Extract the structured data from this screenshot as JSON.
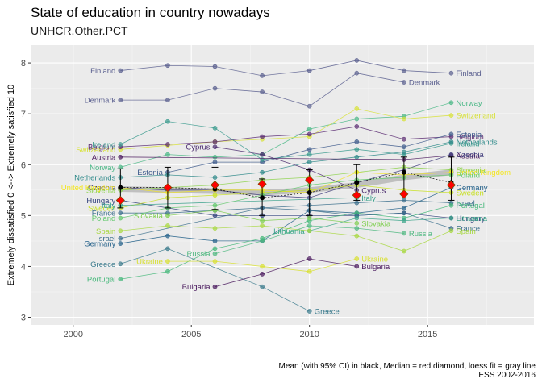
{
  "chart_data": {
    "type": "line",
    "title": "State of education in country nowadays",
    "subtitle": "UNHCR.Other.PCT",
    "xlabel": "",
    "ylabel": "Extremely dissatisfied 0 <--> Extremely satisfied 10",
    "xlim": [
      1998.2,
      2019.5
    ],
    "ylim": [
      2.85,
      8.35
    ],
    "xticks": [
      2000,
      2005,
      2010,
      2015
    ],
    "yticks": [
      3,
      4,
      5,
      6,
      7,
      8
    ],
    "grid": true,
    "caption_line1": "Mean (with 95% CI) in black, Median = red diamond, loess fit = gray line",
    "caption_line2": "ESS 2002-2016",
    "series": [
      {
        "name": "Finland",
        "color": "#5a5f8f",
        "points": [
          [
            2002,
            7.85
          ],
          [
            2004,
            7.95
          ],
          [
            2006,
            7.93
          ],
          [
            2008,
            7.75
          ],
          [
            2010,
            7.85
          ],
          [
            2012,
            8.05
          ],
          [
            2014,
            7.85
          ],
          [
            2016,
            7.8
          ]
        ],
        "label_left": "Finland",
        "label_right": "Finland"
      },
      {
        "name": "Denmark",
        "color": "#5a5f8f",
        "points": [
          [
            2002,
            7.27
          ],
          [
            2004,
            7.27
          ],
          [
            2006,
            7.5
          ],
          [
            2008,
            7.43
          ],
          [
            2010,
            7.15
          ],
          [
            2012,
            7.8
          ],
          [
            2014,
            7.62
          ]
        ],
        "label_left": "Denmark",
        "label_right": "Denmark"
      },
      {
        "name": "Norway",
        "color": "#4ab886",
        "points": [
          [
            2002,
            5.95
          ],
          [
            2004,
            6.2
          ],
          [
            2006,
            6.15
          ],
          [
            2008,
            6.2
          ],
          [
            2010,
            6.7
          ],
          [
            2012,
            6.9
          ],
          [
            2014,
            6.95
          ],
          [
            2016,
            7.22
          ]
        ],
        "label_left": "Norway",
        "label_right": "Norway"
      },
      {
        "name": "Switzerland",
        "color": "#d8e23a",
        "points": [
          [
            2002,
            6.3
          ],
          [
            2004,
            6.38
          ],
          [
            2006,
            6.45
          ],
          [
            2008,
            6.5
          ],
          [
            2010,
            6.55
          ],
          [
            2012,
            7.1
          ],
          [
            2014,
            6.9
          ],
          [
            2016,
            6.97
          ]
        ],
        "label_left": "Switzerland",
        "label_right": "Switzerland"
      },
      {
        "name": "Belgium",
        "color": "#5c2d73",
        "points": [
          [
            2002,
            6.35
          ],
          [
            2004,
            6.4
          ],
          [
            2006,
            6.45
          ],
          [
            2008,
            6.55
          ],
          [
            2010,
            6.6
          ],
          [
            2012,
            6.75
          ],
          [
            2014,
            6.5
          ],
          [
            2016,
            6.55
          ]
        ],
        "label_left": "Belgium",
        "label_right": "Belgium"
      },
      {
        "name": "Estonia",
        "color": "#3e5b8c",
        "points": [
          [
            2004,
            5.85
          ],
          [
            2006,
            6.05
          ],
          [
            2008,
            6.05
          ],
          [
            2010,
            6.3
          ],
          [
            2012,
            6.45
          ],
          [
            2014,
            6.35
          ],
          [
            2016,
            6.6
          ]
        ],
        "label_left": "Estonia",
        "label_right": "Estonia"
      },
      {
        "name": "Ireland",
        "color": "#3b9b8e",
        "points": [
          [
            2002,
            6.4
          ],
          [
            2004,
            6.85
          ],
          [
            2006,
            6.72
          ],
          [
            2008,
            6.1
          ],
          [
            2010,
            6.2
          ],
          [
            2012,
            6.3
          ],
          [
            2014,
            6.2
          ],
          [
            2016,
            6.42
          ]
        ],
        "label_left": "Ireland",
        "label_right": "Ireland"
      },
      {
        "name": "Netherlands",
        "color": "#2f8a8a",
        "points": [
          [
            2002,
            5.75
          ],
          [
            2004,
            5.8
          ],
          [
            2006,
            5.75
          ],
          [
            2008,
            5.85
          ],
          [
            2010,
            6.05
          ],
          [
            2012,
            6.15
          ],
          [
            2014,
            6.25
          ],
          [
            2016,
            6.45
          ]
        ],
        "label_left": "Netherlands",
        "label_right": "Netherlands"
      },
      {
        "name": "Austria",
        "color": "#4b1a5e",
        "points": [
          [
            2002,
            6.15
          ],
          [
            2014,
            6.1
          ],
          [
            2016,
            6.18
          ]
        ],
        "label_left": "Austria",
        "label_right": "Austria"
      },
      {
        "name": "Czechia",
        "color": "#3d3a7a",
        "points": [
          [
            2002,
            5.55
          ],
          [
            2004,
            5.5
          ],
          [
            2006,
            5.5
          ],
          [
            2008,
            5.4
          ],
          [
            2010,
            5.35
          ],
          [
            2012,
            5.65
          ],
          [
            2014,
            5.9
          ],
          [
            2016,
            6.2
          ]
        ],
        "label_left": "Czechia",
        "label_right": "Czechia"
      },
      {
        "name": "Slovenia",
        "color": "#8cd24a",
        "points": [
          [
            2002,
            5.5
          ],
          [
            2004,
            5.55
          ],
          [
            2006,
            5.6
          ],
          [
            2008,
            5.7
          ],
          [
            2010,
            5.75
          ],
          [
            2012,
            5.85
          ],
          [
            2014,
            5.95
          ],
          [
            2016,
            5.9
          ]
        ],
        "label_left": "Slovenia",
        "label_right": "Slovenia"
      },
      {
        "name": "United Kingdom",
        "color": "#f4e61e",
        "points": [
          [
            2002,
            5.55
          ],
          [
            2004,
            5.45
          ],
          [
            2006,
            5.5
          ],
          [
            2008,
            5.5
          ],
          [
            2010,
            5.45
          ],
          [
            2012,
            5.85
          ],
          [
            2014,
            5.8
          ],
          [
            2016,
            5.85
          ]
        ],
        "label_left": "United Kingdom",
        "label_right": "United Kingdom"
      },
      {
        "name": "Cyprus",
        "color": "#4a2a6e",
        "points": [
          [
            2006,
            6.35
          ],
          [
            2008,
            6.2
          ],
          [
            2010,
            5.9
          ],
          [
            2012,
            5.5
          ]
        ],
        "label_left": "Cyprus",
        "label_right": "Cyprus"
      },
      {
        "name": "Germany",
        "color": "#24618a",
        "points": [
          [
            2002,
            4.45
          ],
          [
            2004,
            4.6
          ],
          [
            2006,
            4.5
          ],
          [
            2008,
            4.5
          ],
          [
            2010,
            5.1
          ],
          [
            2012,
            5.05
          ],
          [
            2014,
            5.15
          ],
          [
            2016,
            5.55
          ]
        ],
        "label_left": "Germany",
        "label_right": "Germany"
      },
      {
        "name": "Hungary",
        "color": "#2f3f7a",
        "points": [
          [
            2002,
            5.3
          ],
          [
            2004,
            5.15
          ],
          [
            2006,
            5.0
          ],
          [
            2008,
            5.0
          ],
          [
            2010,
            5.0
          ],
          [
            2012,
            5.0
          ],
          [
            2014,
            5.05
          ],
          [
            2016,
            4.95
          ]
        ],
        "label_left": "Hungary",
        "label_right": "Hungary"
      },
      {
        "name": "Israel",
        "color": "#3a6e8c",
        "points": [
          [
            2002,
            4.55
          ],
          [
            2008,
            5.15
          ],
          [
            2010,
            5.2
          ],
          [
            2012,
            5.25
          ],
          [
            2014,
            5.3
          ],
          [
            2016,
            5.25
          ]
        ],
        "label_left": "Israel",
        "label_right": "Israel"
      },
      {
        "name": "Sweden",
        "color": "#c8e020",
        "points": [
          [
            2002,
            5.15
          ],
          [
            2004,
            5.35
          ],
          [
            2006,
            5.4
          ],
          [
            2008,
            5.45
          ],
          [
            2010,
            5.5
          ],
          [
            2012,
            5.6
          ],
          [
            2014,
            5.5
          ],
          [
            2016,
            5.45
          ]
        ],
        "label_left": "Sweden",
        "label_right": "Sweden"
      },
      {
        "name": "Portugal",
        "color": "#45b87a",
        "points": [
          [
            2002,
            3.75
          ],
          [
            2004,
            3.9
          ],
          [
            2006,
            4.35
          ],
          [
            2008,
            4.55
          ],
          [
            2010,
            4.9
          ],
          [
            2012,
            5.05
          ],
          [
            2014,
            4.95
          ],
          [
            2016,
            5.2
          ]
        ],
        "label_left": "Portugal",
        "label_right": "Portugal"
      },
      {
        "name": "France",
        "color": "#3a6e8c",
        "points": [
          [
            2002,
            5.05
          ],
          [
            2004,
            5.05
          ],
          [
            2006,
            5.1
          ],
          [
            2008,
            5.15
          ],
          [
            2010,
            5.1
          ],
          [
            2012,
            5.0
          ],
          [
            2014,
            5.05
          ],
          [
            2016,
            4.75
          ]
        ],
        "label_left": "France",
        "label_right": "France"
      },
      {
        "name": "Lithuania",
        "color": "#3aa58a",
        "points": [
          [
            2010,
            4.7
          ],
          [
            2012,
            4.95
          ],
          [
            2014,
            4.9
          ],
          [
            2016,
            4.95
          ]
        ],
        "label_left": "Lithuania",
        "label_right": "Lithuania"
      },
      {
        "name": "Poland",
        "color": "#5fc86a",
        "points": [
          [
            2002,
            4.95
          ],
          [
            2004,
            5.15
          ],
          [
            2006,
            5.2
          ],
          [
            2008,
            5.4
          ],
          [
            2010,
            5.6
          ],
          [
            2012,
            5.7
          ],
          [
            2014,
            5.75
          ],
          [
            2016,
            5.8
          ]
        ],
        "label_left": "Poland",
        "label_right": "Poland"
      },
      {
        "name": "Spain",
        "color": "#a8d840",
        "points": [
          [
            2002,
            4.7
          ],
          [
            2004,
            4.8
          ],
          [
            2006,
            4.75
          ],
          [
            2008,
            4.8
          ],
          [
            2010,
            4.7
          ],
          [
            2012,
            4.6
          ],
          [
            2014,
            4.3
          ],
          [
            2016,
            4.7
          ]
        ],
        "label_left": "Spain",
        "label_right": "Spain"
      },
      {
        "name": "Italy",
        "color": "#36a08a",
        "points": [
          [
            2002,
            5.2
          ],
          [
            2012,
            5.35
          ]
        ],
        "label_left": "Italy",
        "label_right": "Italy"
      },
      {
        "name": "Slovakia",
        "color": "#7fcf50",
        "points": [
          [
            2004,
            5.0
          ],
          [
            2006,
            5.1
          ],
          [
            2008,
            4.9
          ],
          [
            2010,
            4.95
          ],
          [
            2012,
            4.85
          ]
        ],
        "label_left": "Slovakia",
        "label_right": "Slovakia"
      },
      {
        "name": "Russia",
        "color": "#4fb880",
        "points": [
          [
            2006,
            4.25
          ],
          [
            2008,
            4.5
          ],
          [
            2010,
            4.8
          ],
          [
            2012,
            4.75
          ],
          [
            2014,
            4.65
          ]
        ],
        "label_left": "Russia",
        "label_right": "Russia"
      },
      {
        "name": "Greece",
        "color": "#3a7a8c",
        "points": [
          [
            2002,
            4.05
          ],
          [
            2004,
            4.35
          ],
          [
            2008,
            3.6
          ],
          [
            2010,
            3.12
          ]
        ],
        "label_left": "Greece",
        "label_right": "Greece"
      },
      {
        "name": "Ukraine",
        "color": "#d8e030",
        "points": [
          [
            2004,
            4.1
          ],
          [
            2006,
            4.1
          ],
          [
            2008,
            4.0
          ],
          [
            2010,
            3.9
          ],
          [
            2012,
            4.15
          ]
        ],
        "label_left": "Ukraine",
        "label_right": "Ukraine"
      },
      {
        "name": "Bulgaria",
        "color": "#4a1a5e",
        "points": [
          [
            2006,
            3.6
          ],
          [
            2008,
            3.85
          ],
          [
            2010,
            4.15
          ],
          [
            2012,
            4.0
          ]
        ],
        "label_left": "Bulgaria",
        "label_right": "Bulgaria"
      }
    ],
    "mean": {
      "name": "Mean (with 95% CI)",
      "color": "#000000",
      "points": [
        {
          "x": 2002,
          "y": 5.55,
          "lo": 5.15,
          "hi": 5.92
        },
        {
          "x": 2004,
          "y": 5.55,
          "lo": 5.15,
          "hi": 5.95
        },
        {
          "x": 2006,
          "y": 5.52,
          "lo": 5.12,
          "hi": 5.95
        },
        {
          "x": 2008,
          "y": 5.35,
          "lo": 5.0,
          "hi": 5.72
        },
        {
          "x": 2010,
          "y": 5.45,
          "lo": 5.0,
          "hi": 5.9
        },
        {
          "x": 2012,
          "y": 5.65,
          "lo": 5.3,
          "hi": 6.0
        },
        {
          "x": 2014,
          "y": 5.85,
          "lo": 5.45,
          "hi": 6.15
        },
        {
          "x": 2016,
          "y": 5.65,
          "lo": 5.3,
          "hi": 6.15
        }
      ]
    },
    "median": {
      "name": "Median",
      "color": "#ff0000",
      "points": [
        {
          "x": 2002,
          "y": 5.3
        },
        {
          "x": 2004,
          "y": 5.55
        },
        {
          "x": 2006,
          "y": 5.6
        },
        {
          "x": 2008,
          "y": 5.62
        },
        {
          "x": 2010,
          "y": 5.7
        },
        {
          "x": 2012,
          "y": 5.4
        },
        {
          "x": 2014,
          "y": 5.42
        },
        {
          "x": 2016,
          "y": 5.6
        }
      ]
    },
    "loess": {
      "name": "loess fit",
      "color": "#bdbdbd",
      "points": [
        [
          2002,
          5.52
        ],
        [
          2004,
          5.5
        ],
        [
          2006,
          5.48
        ],
        [
          2008,
          5.45
        ],
        [
          2010,
          5.5
        ],
        [
          2012,
          5.6
        ],
        [
          2014,
          5.75
        ],
        [
          2016,
          5.85
        ]
      ]
    }
  }
}
